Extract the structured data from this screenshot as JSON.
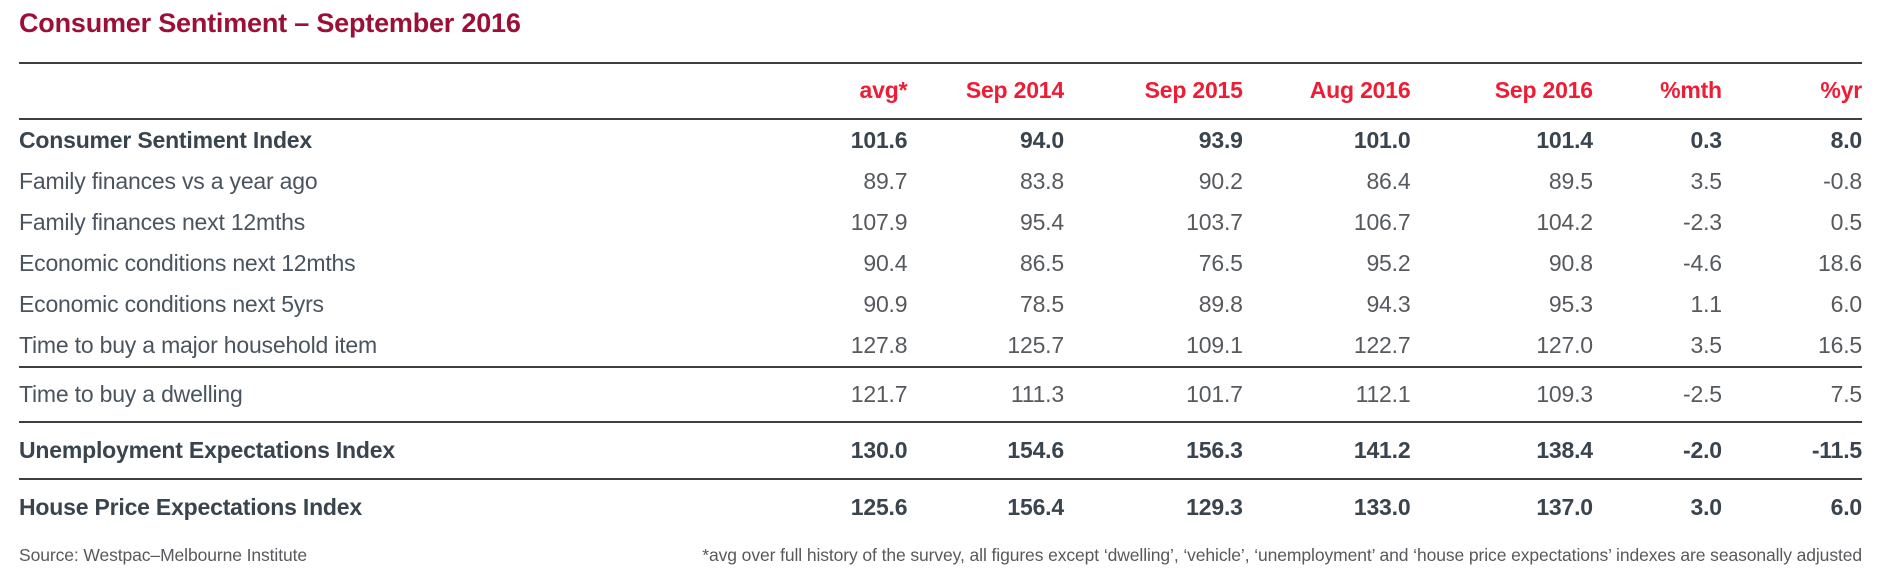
{
  "chart_data": {
    "type": "table",
    "title": "Consumer Sentiment – September 2016",
    "columns": [
      "avg*",
      "Sep 2014",
      "Sep 2015",
      "Aug 2016",
      "Sep 2016",
      "%mth",
      "%yr"
    ],
    "rows": [
      {
        "label": "Consumer Sentiment Index",
        "bold": true,
        "rule_above": false,
        "values": [
          "101.6",
          "94.0",
          "93.9",
          "101.0",
          "101.4",
          "0.3",
          "8.0"
        ]
      },
      {
        "label": "Family finances vs a year ago",
        "bold": false,
        "rule_above": false,
        "values": [
          "89.7",
          "83.8",
          "90.2",
          "86.4",
          "89.5",
          "3.5",
          "-0.8"
        ]
      },
      {
        "label": "Family finances next 12mths",
        "bold": false,
        "rule_above": false,
        "values": [
          "107.9",
          "95.4",
          "103.7",
          "106.7",
          "104.2",
          "-2.3",
          "0.5"
        ]
      },
      {
        "label": "Economic conditions next 12mths",
        "bold": false,
        "rule_above": false,
        "values": [
          "90.4",
          "86.5",
          "76.5",
          "95.2",
          "90.8",
          "-4.6",
          "18.6"
        ]
      },
      {
        "label": "Economic conditions next 5yrs",
        "bold": false,
        "rule_above": false,
        "values": [
          "90.9",
          "78.5",
          "89.8",
          "94.3",
          "95.3",
          "1.1",
          "6.0"
        ]
      },
      {
        "label": "Time to buy a major household item",
        "bold": false,
        "rule_above": false,
        "values": [
          "127.8",
          "125.7",
          "109.1",
          "122.7",
          "127.0",
          "3.5",
          "16.5"
        ]
      },
      {
        "label": "Time to buy a dwelling",
        "bold": false,
        "rule_above": true,
        "size": "mid",
        "values": [
          "121.7",
          "111.3",
          "101.7",
          "112.1",
          "109.3",
          "-2.5",
          "7.5"
        ]
      },
      {
        "label": "Unemployment Expectations Index",
        "bold": true,
        "rule_above": true,
        "size": "tall",
        "values": [
          "130.0",
          "154.6",
          "156.3",
          "141.2",
          "138.4",
          "-2.0",
          "-11.5"
        ]
      },
      {
        "label": "House Price Expectations Index",
        "bold": true,
        "rule_above": true,
        "size": "tall",
        "values": [
          "125.6",
          "156.4",
          "129.3",
          "133.0",
          "137.0",
          "3.0",
          "6.0"
        ]
      }
    ],
    "layout": {
      "value_alignment": "right",
      "label_column": "blank-header"
    }
  },
  "footer": {
    "source": "Source: Westpac–Melbourne Institute",
    "footnote": "*avg over full history of the survey, all figures except ‘dwelling’, ‘vehicle’, ‘unemployment’ and ‘house price expectations’ indexes are seasonally adjusted"
  },
  "colors": {
    "title_red": "#9c1038",
    "header_red": "#ee1c34",
    "label_bold": "#39444e",
    "label_regular": "#4a545e",
    "number_grey": "#565a5e",
    "rule_dark": "#3f4040",
    "footer_grey": "#57595c"
  }
}
